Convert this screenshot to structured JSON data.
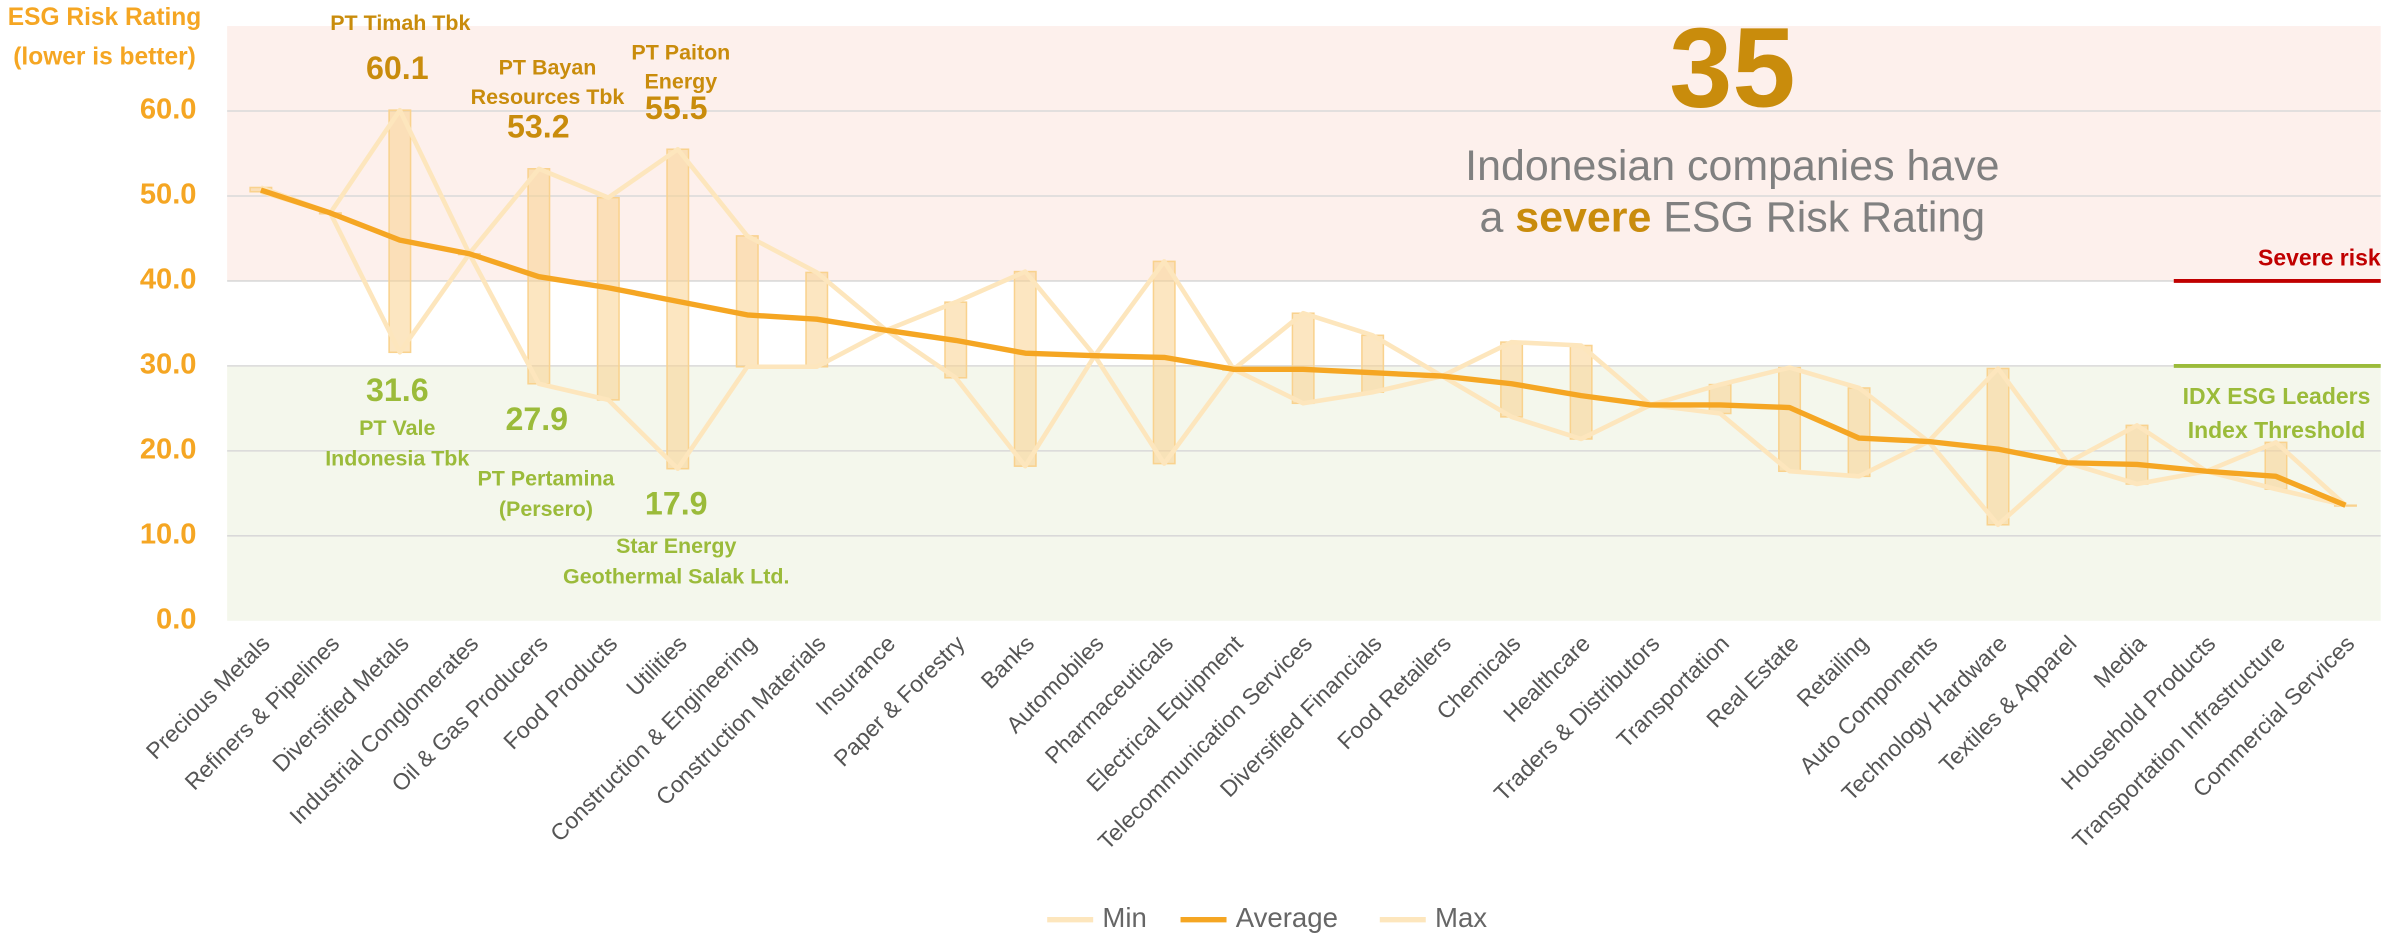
{
  "chart_data": {
    "type": "range_line",
    "y_axis_title": [
      "ESG Risk Rating",
      "(lower is better)"
    ],
    "categories": [
      "Precious Metals",
      "Refiners & Pipelines",
      "Diversified Metals",
      "Industrial Conglomerates",
      "Oil & Gas Producers",
      "Food Products",
      "Utilities",
      "Construction & Engineering",
      "Construction Materials",
      "Insurance",
      "Paper & Forestry",
      "Banks",
      "Automobiles",
      "Pharmaceuticals",
      "Electrical Equipment",
      "Telecommunication Services",
      "Diversified Financials",
      "Food Retailers",
      "Chemicals",
      "Healthcare",
      "Traders & Distributors",
      "Transportation",
      "Real Estate",
      "Retailing",
      "Auto Components",
      "Technology Hardware",
      "Textiles & Apparel",
      "Media",
      "Household Products",
      "Transportation Infrastructure",
      "Commercial Services"
    ],
    "series": [
      {
        "name": "Min",
        "color": "#fde6bd",
        "values": [
          50.5,
          48.0,
          31.6,
          43.2,
          27.9,
          26.0,
          17.9,
          29.9,
          29.9,
          34.2,
          28.6,
          18.2,
          31.2,
          18.5,
          29.6,
          25.6,
          26.9,
          28.8,
          24.0,
          21.4,
          25.4,
          24.4,
          17.6,
          17.0,
          21.1,
          11.3,
          18.6,
          16.1,
          17.6,
          15.5,
          13.6
        ]
      },
      {
        "name": "Average",
        "color": "#f5a623",
        "values": [
          50.7,
          48.0,
          44.8,
          43.2,
          40.5,
          39.2,
          37.6,
          36.0,
          35.5,
          34.2,
          33.0,
          31.5,
          31.2,
          31.0,
          29.6,
          29.6,
          29.2,
          28.8,
          27.9,
          26.5,
          25.4,
          25.4,
          25.1,
          21.5,
          21.1,
          20.2,
          18.6,
          18.4,
          17.6,
          17.0,
          13.6
        ]
      },
      {
        "name": "Max",
        "color": "#fde6bd",
        "values": [
          51.0,
          48.0,
          60.1,
          43.2,
          53.2,
          49.8,
          55.5,
          45.3,
          41.0,
          34.2,
          37.5,
          41.1,
          31.2,
          42.3,
          29.6,
          36.2,
          33.6,
          28.8,
          32.8,
          32.4,
          25.4,
          27.8,
          29.8,
          27.4,
          21.1,
          29.7,
          18.6,
          23.0,
          17.6,
          21.0,
          13.6
        ]
      }
    ],
    "range_color": "#f9d28e",
    "ylim": [
      0,
      70
    ],
    "yticks": [
      {
        "value": 0,
        "label": "0.0"
      },
      {
        "value": 10,
        "label": "10.0"
      },
      {
        "value": 20,
        "label": "20.0"
      },
      {
        "value": 30,
        "label": "30.0"
      },
      {
        "value": 40,
        "label": "40.0"
      },
      {
        "value": 50,
        "label": "50.0"
      },
      {
        "value": 60,
        "label": "60.0"
      }
    ],
    "grid": true,
    "thresholds": [
      {
        "value": 40,
        "label_lines": [
          "Severe risk"
        ],
        "color": "#c00000",
        "band_color": "#fdf0ec"
      },
      {
        "value": 30,
        "label_lines": [
          "IDX ESG Leaders",
          "Index Threshold"
        ],
        "color": "#9bbb3a",
        "band_color": "#f4f7ec"
      }
    ],
    "annotations": [
      {
        "name_lines": [
          "PT Timah Tbk"
        ],
        "value": 60.1,
        "color": "#c98c0c"
      },
      {
        "name_lines": [
          "PT Bayan",
          "Resources Tbk"
        ],
        "value": 53.2,
        "color": "#c98c0c"
      },
      {
        "name_lines": [
          "PT Paiton",
          "Energy"
        ],
        "value": 55.5,
        "color": "#c98c0c"
      },
      {
        "name_lines": [
          "PT Vale",
          "Indonesia Tbk"
        ],
        "value": 31.6,
        "color": "#9bbb3a"
      },
      {
        "name_lines": [
          "PT Pertamina",
          "(Persero)"
        ],
        "value": 27.9,
        "color": "#9bbb3a"
      },
      {
        "name_lines": [
          "Star Energy",
          "Geothermal Salak Ltd."
        ],
        "value": 17.9,
        "color": "#9bbb3a"
      }
    ],
    "callout": {
      "number": 35,
      "line1": "Indonesian companies have",
      "line2": [
        "a ",
        "severe",
        " ESG Risk Rating"
      ]
    },
    "legend": "bottom"
  }
}
